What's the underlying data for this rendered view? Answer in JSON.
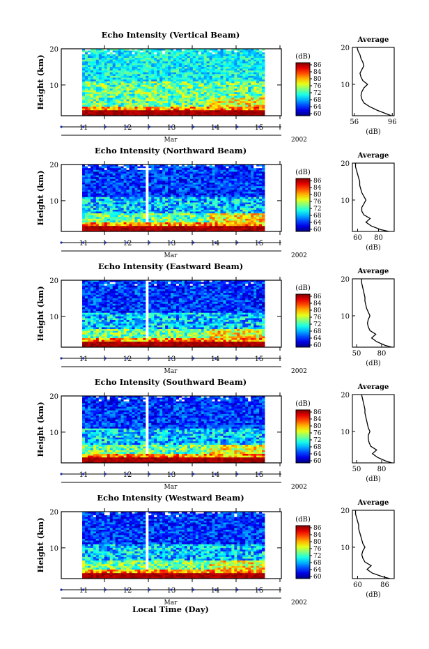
{
  "figure": {
    "xlabel": "Local Time (Day)",
    "year": "2002",
    "month": "Mar",
    "day_ticks": [
      "11",
      "12",
      "13",
      "14",
      "15"
    ],
    "colorbar_unit": "(dB)",
    "colorbar_ticks": [
      "86",
      "84",
      "80",
      "76",
      "72",
      "68",
      "64",
      "60"
    ],
    "average_title": "Average",
    "average_xlabel": "(dB)",
    "ylabel": "Height (km)"
  },
  "chart_data": [
    {
      "type": "heatmap",
      "title": "Echo Intensity (Vertical Beam)",
      "beam": "vertical",
      "ylabel": "Height (km)",
      "ylim": [
        1.5,
        20
      ],
      "yticks": [
        "20",
        "10"
      ],
      "colorbar_range": [
        60,
        88
      ],
      "average_profile": {
        "xticks": [
          "56",
          "96"
        ],
        "xlim": [
          54,
          98
        ],
        "height_km": [
          1.5,
          2,
          3,
          4,
          5,
          6,
          7,
          8,
          9,
          10,
          11,
          12,
          13,
          14,
          15,
          16,
          17,
          18,
          19,
          20
        ],
        "db": [
          95,
          90,
          80,
          72,
          66,
          64,
          63,
          64,
          66,
          70,
          65,
          63,
          62,
          64,
          66,
          65,
          63,
          62,
          60,
          59
        ]
      }
    },
    {
      "type": "heatmap",
      "title": "Echo Intensity (Northward Beam)",
      "beam": "northward",
      "ylabel": "Height (km)",
      "ylim": [
        1.5,
        20
      ],
      "yticks": [
        "20",
        "10"
      ],
      "colorbar_range": [
        60,
        88
      ],
      "average_profile": {
        "xticks": [
          "60",
          "80"
        ],
        "xlim": [
          55,
          95
        ],
        "height_km": [
          1.5,
          2,
          3,
          4,
          5,
          6,
          7,
          8,
          9,
          10,
          11,
          12,
          13,
          14,
          15,
          16,
          17,
          18,
          19,
          20
        ],
        "db": [
          90,
          82,
          73,
          68,
          72,
          66,
          64,
          64,
          66,
          68,
          66,
          64,
          63,
          62,
          62,
          61,
          60,
          59,
          58,
          58
        ]
      }
    },
    {
      "type": "heatmap",
      "title": "Echo Intensity (Eastward Beam)",
      "beam": "eastward",
      "ylabel": "Height (km)",
      "ylim": [
        1.5,
        20
      ],
      "yticks": [
        "20",
        "10"
      ],
      "colorbar_range": [
        60,
        88
      ],
      "average_profile": {
        "xticks": [
          "50",
          "80"
        ],
        "xlim": [
          45,
          95
        ],
        "height_km": [
          1.5,
          2,
          3,
          4,
          5,
          6,
          7,
          8,
          9,
          10,
          11,
          12,
          13,
          14,
          15,
          16,
          17,
          18,
          19,
          20
        ],
        "db": [
          92,
          84,
          74,
          68,
          73,
          66,
          64,
          63,
          64,
          66,
          64,
          62,
          61,
          60,
          60,
          59,
          58,
          57,
          56,
          56
        ]
      }
    },
    {
      "type": "heatmap",
      "title": "Echo Intensity (Southward Beam)",
      "beam": "southward",
      "ylabel": "Height (km)",
      "ylim": [
        1.5,
        20
      ],
      "yticks": [
        "20",
        "10"
      ],
      "colorbar_range": [
        60,
        88
      ],
      "average_profile": {
        "xticks": [
          "50",
          "80"
        ],
        "xlim": [
          45,
          95
        ],
        "height_km": [
          1.5,
          2,
          3,
          4,
          5,
          6,
          7,
          8,
          9,
          10,
          11,
          12,
          13,
          14,
          15,
          16,
          17,
          18,
          19,
          20
        ],
        "db": [
          92,
          85,
          75,
          69,
          74,
          67,
          65,
          64,
          64,
          66,
          64,
          63,
          62,
          61,
          60,
          60,
          59,
          58,
          57,
          56
        ]
      }
    },
    {
      "type": "heatmap",
      "title": "Echo Intensity (Westward Beam)",
      "beam": "westward",
      "ylabel": "Height (km)",
      "ylim": [
        1.5,
        20
      ],
      "yticks": [
        "20",
        "10"
      ],
      "colorbar_range": [
        60,
        88
      ],
      "average_profile": {
        "xticks": [
          "60",
          "86"
        ],
        "xlim": [
          55,
          95
        ],
        "height_km": [
          1.5,
          2,
          3,
          4,
          5,
          6,
          7,
          8,
          9,
          10,
          11,
          12,
          13,
          14,
          15,
          16,
          17,
          18,
          19,
          20
        ],
        "db": [
          91,
          84,
          74,
          69,
          73,
          67,
          65,
          64,
          65,
          67,
          65,
          64,
          63,
          62,
          61,
          61,
          60,
          59,
          58,
          58
        ]
      }
    }
  ]
}
